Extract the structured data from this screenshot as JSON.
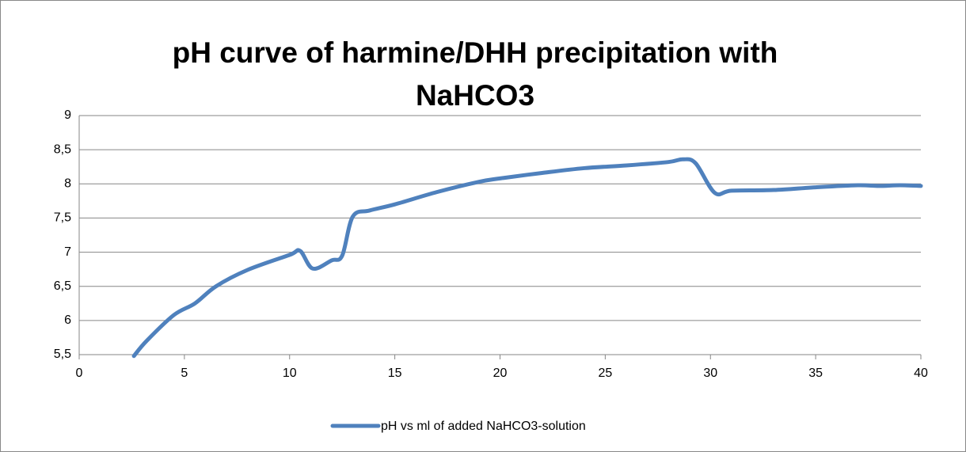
{
  "chart_data": {
    "type": "line",
    "title": "pH curve of harmine/DHH precipitation with NaHCO3",
    "xlim": [
      0,
      40
    ],
    "xticks": [
      0,
      5,
      10,
      15,
      20,
      25,
      30,
      35,
      40
    ],
    "ylim": [
      5.5,
      9
    ],
    "yticks": [
      {
        "value": 5.5,
        "label": "5,5"
      },
      6,
      {
        "value": 6.5,
        "label": "6,5"
      },
      7,
      {
        "value": 7.5,
        "label": "7,5"
      },
      8,
      {
        "value": 8.5,
        "label": "8,5"
      },
      9
    ],
    "grid": true,
    "legend": "bottom",
    "series": [
      {
        "name": "pH vs ml of added NaHCO3-solution",
        "color": "#4f81bd",
        "x": [
          2.6,
          3.2,
          4.5,
          5.5,
          6.5,
          8,
          10,
          10.5,
          11.1,
          12,
          12.5,
          13,
          13.8,
          15,
          17,
          19,
          20,
          22,
          24,
          26,
          28,
          28.7,
          29.3,
          30.2,
          31,
          33,
          35,
          37,
          38,
          39,
          40
        ],
        "values": [
          5.48,
          5.7,
          6.08,
          6.25,
          6.5,
          6.74,
          6.96,
          7.02,
          6.76,
          6.88,
          6.95,
          7.52,
          7.61,
          7.7,
          7.88,
          8.03,
          8.08,
          8.16,
          8.23,
          8.27,
          8.32,
          8.36,
          8.3,
          7.87,
          7.9,
          7.91,
          7.95,
          7.98,
          7.97,
          7.98,
          7.97
        ]
      }
    ]
  }
}
